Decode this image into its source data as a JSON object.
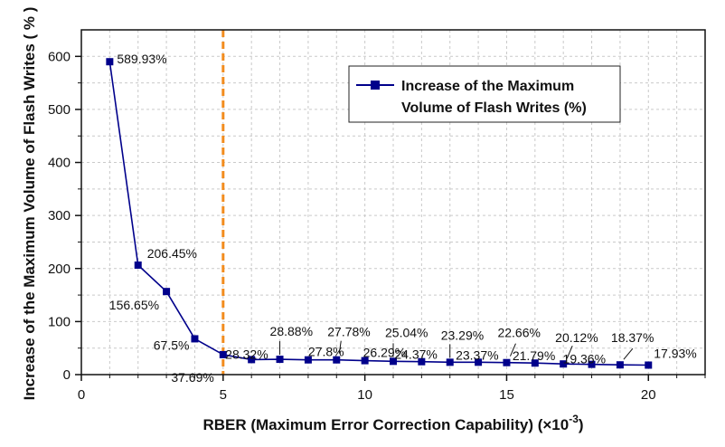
{
  "chart_data": {
    "type": "line",
    "title": "",
    "xlabel_main": "RBER (Maximum Error Correction Capability) (×10",
    "xlabel_exp": "-3",
    "xlabel_close": ")",
    "ylabel": "Increase of the Maximum Volume of Flash Writes ( % )",
    "xlim": [
      0,
      22
    ],
    "ylim": [
      0,
      650
    ],
    "xticks": [
      0,
      5,
      10,
      15,
      20
    ],
    "yticks": [
      0,
      100,
      200,
      300,
      400,
      500,
      600
    ],
    "grid": true,
    "legend": "top-right",
    "vline_x": 5,
    "vline_color": "#f28c1e",
    "series": [
      {
        "name": "Increase of the Maximum Volume of Flash Writes (%)",
        "legend_line1": "Increase of the Maximum",
        "legend_line2": "Volume of Flash Writes (%)",
        "color": "#00008b",
        "x": [
          1,
          2,
          3,
          4,
          5,
          6,
          7,
          8,
          9,
          10,
          11,
          12,
          13,
          14,
          15,
          16,
          17,
          18,
          19,
          20
        ],
        "y": [
          589.93,
          206.45,
          156.65,
          67.5,
          37.69,
          28.32,
          28.88,
          27.8,
          27.78,
          26.29,
          25.04,
          24.37,
          23.29,
          23.37,
          22.66,
          21.79,
          20.12,
          19.36,
          18.37,
          17.93
        ]
      }
    ],
    "annotations": [
      {
        "text": "589.93%",
        "x": 1,
        "y": 589.93
      },
      {
        "text": "206.45%",
        "x": 2,
        "y": 206.45
      },
      {
        "text": "156.65%",
        "x": 3,
        "y": 156.65
      },
      {
        "text": "67.5%",
        "x": 4,
        "y": 67.5
      },
      {
        "text": "37.69%",
        "x": 5,
        "y": 37.69
      },
      {
        "text": "28.32%",
        "x": 6,
        "y": 28.32
      },
      {
        "text": "28.88%",
        "x": 7,
        "y": 28.88
      },
      {
        "text": "27.8%",
        "x": 8,
        "y": 27.8
      },
      {
        "text": "27.78%",
        "x": 9,
        "y": 27.78
      },
      {
        "text": "26.29%",
        "x": 10,
        "y": 26.29
      },
      {
        "text": "25.04%",
        "x": 11,
        "y": 25.04
      },
      {
        "text": "24.37%",
        "x": 12,
        "y": 24.37
      },
      {
        "text": "23.29%",
        "x": 13,
        "y": 23.29
      },
      {
        "text": "23.37%",
        "x": 14,
        "y": 23.37
      },
      {
        "text": "22.66%",
        "x": 15,
        "y": 22.66
      },
      {
        "text": "21.79%",
        "x": 16,
        "y": 21.79
      },
      {
        "text": "20.12%",
        "x": 17,
        "y": 20.12
      },
      {
        "text": "19.36%",
        "x": 18,
        "y": 19.36
      },
      {
        "text": "18.37%",
        "x": 19,
        "y": 18.37
      },
      {
        "text": "17.93%",
        "x": 20,
        "y": 17.93
      }
    ]
  }
}
